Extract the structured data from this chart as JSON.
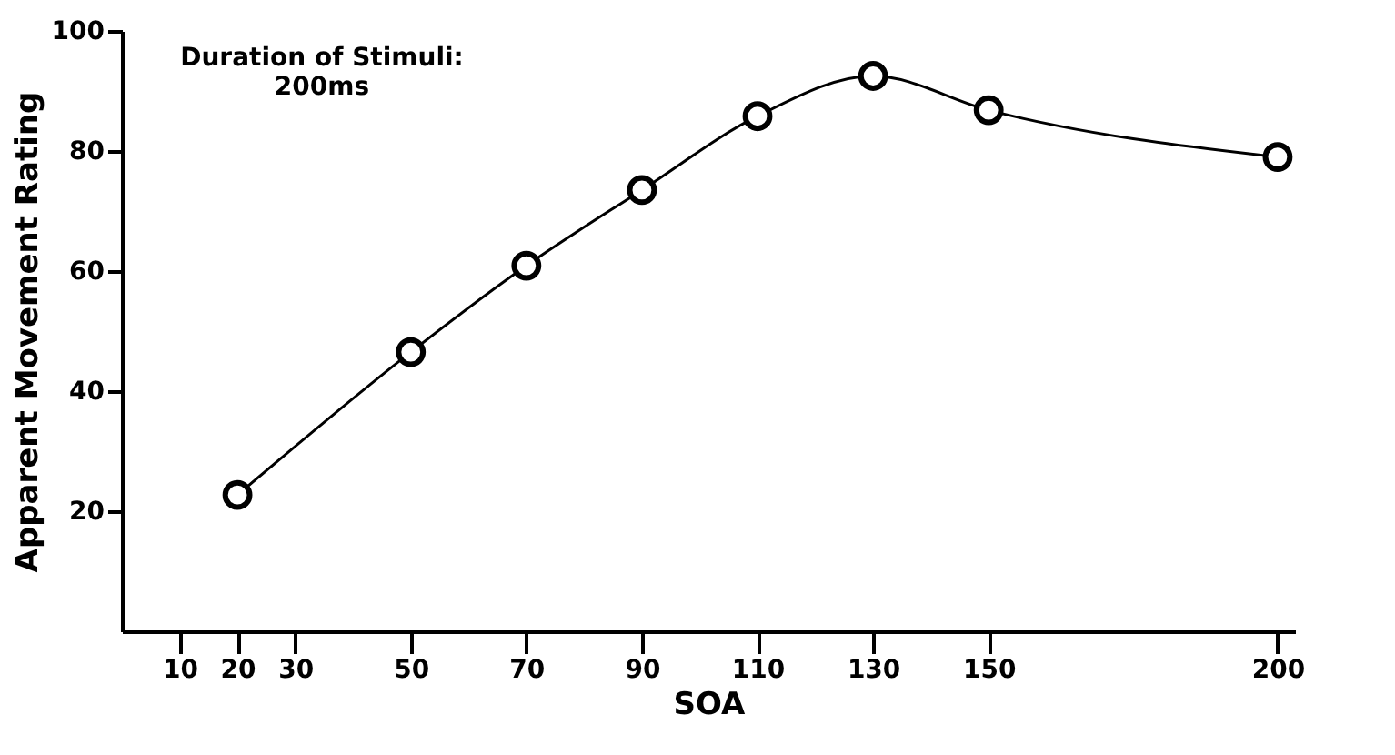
{
  "chart_data": {
    "type": "line",
    "xlabel": "SOA",
    "ylabel": "Apparent Movement Rating",
    "annotations": [
      "Duration of Stimuli:\n200ms"
    ],
    "x": [
      20,
      50,
      70,
      90,
      110,
      130,
      150,
      200
    ],
    "series": [
      {
        "color": "#000000",
        "values": [
          22.7,
          46.5,
          60.9,
          73.5,
          85.8,
          92.5,
          86.8,
          79
        ]
      }
    ],
    "xlim": [
      0,
      203
    ],
    "xticks": [
      10,
      20,
      30,
      50,
      70,
      90,
      110,
      130,
      150,
      200
    ],
    "ylim": [
      0,
      100
    ],
    "yticks": [
      20,
      40,
      60,
      80,
      100
    ],
    "grid": false,
    "legend": false,
    "marker": "circle",
    "line_style": "solid"
  }
}
